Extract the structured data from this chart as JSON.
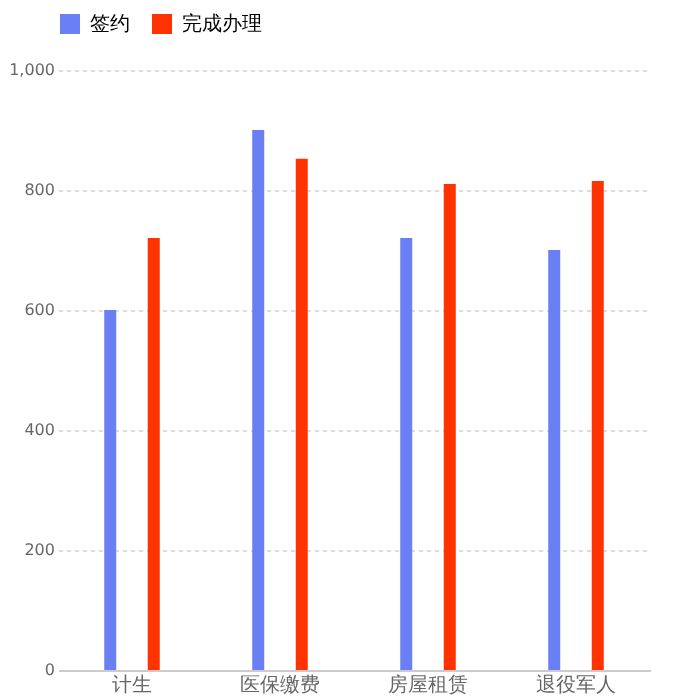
{
  "chart_data": {
    "type": "bar",
    "categories": [
      "计生",
      "医保缴费",
      "房屋租赁",
      "退役军人"
    ],
    "series": [
      {
        "name": "签约",
        "color": "#6b7ff5",
        "values": [
          600,
          900,
          720,
          700
        ]
      },
      {
        "name": "完成办理",
        "color": "#ff3300",
        "values": [
          720,
          852,
          810,
          815
        ]
      }
    ],
    "ylim": [
      0,
      1000
    ],
    "yticks": [
      0,
      200,
      400,
      600,
      800,
      {
        "value": 1000,
        "label": "1,000"
      }
    ],
    "grid": "y",
    "legend": "top"
  }
}
